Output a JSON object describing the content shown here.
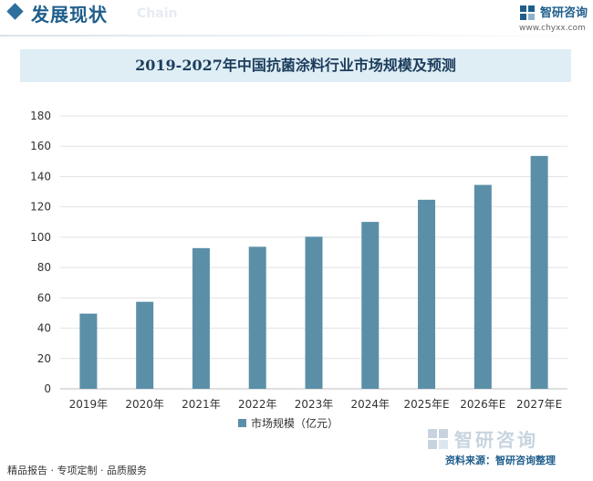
{
  "header": {
    "title": "发展现状",
    "ghost_text": "Chain",
    "brand_name": "智研咨询",
    "brand_url": "www.chyxx.com",
    "accent_color": "#2e6f9e"
  },
  "footer": {
    "left_text": "精品报告 · 专项定制 · 品质服务",
    "source": "资料来源：智研咨询整理",
    "logo_text": "智研咨询"
  },
  "chart_data": {
    "type": "bar",
    "title": "2019-2027年中国抗菌涂料行业市场规模及预测",
    "categories": [
      "2019年",
      "2020年",
      "2021年",
      "2022年",
      "2023年",
      "2024年",
      "2025年E",
      "2026年E",
      "2027年E"
    ],
    "series": [
      {
        "name": "市场规模（亿元）",
        "values": [
          49.6,
          57.4,
          92.8,
          93.7,
          100.3,
          110.1,
          124.7,
          134.5,
          153.6
        ]
      }
    ],
    "ylim": [
      0,
      180
    ],
    "yticks": [
      0,
      20,
      40,
      60,
      80,
      100,
      120,
      140,
      160,
      180
    ],
    "grid": true,
    "legend_position": "bottom",
    "bar_color": "#5b8fa8"
  }
}
